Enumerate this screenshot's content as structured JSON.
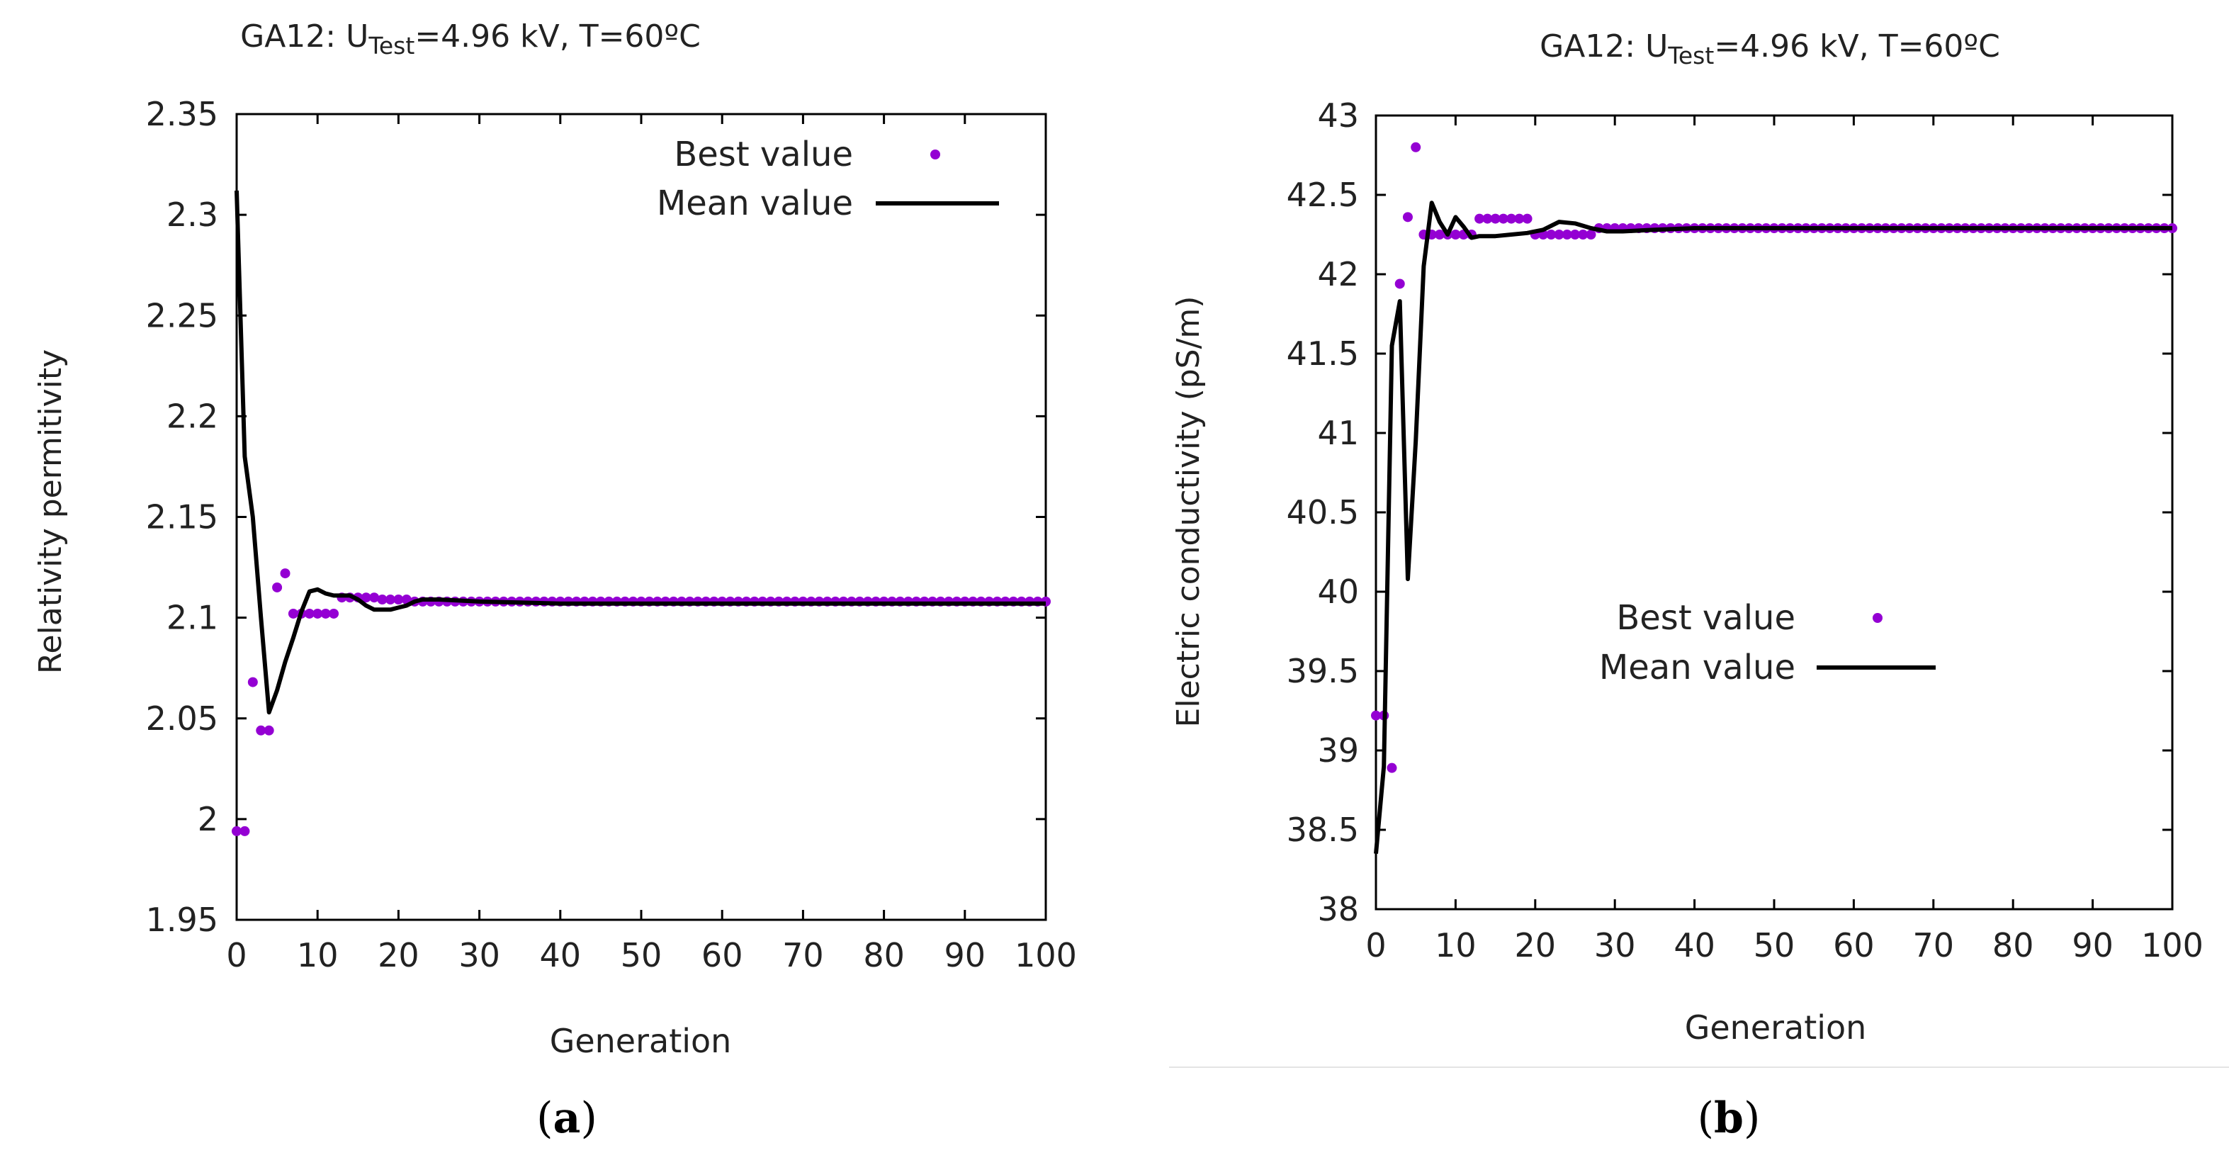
{
  "chart_data": [
    {
      "type": "scatter",
      "panel_label": "a",
      "title": {
        "prefix": "GA12: U",
        "subscript": "Test",
        "suffix": "=4.96 kV, T=60ºC"
      },
      "xlabel": "Generation",
      "ylabel": "Relativity permitivity",
      "xlim": [
        0,
        100
      ],
      "ylim": [
        1.95,
        2.35
      ],
      "xticks": [
        0,
        10,
        20,
        30,
        40,
        50,
        60,
        70,
        80,
        90,
        100
      ],
      "yticks": [
        1.95,
        2,
        2.05,
        2.1,
        2.15,
        2.2,
        2.25,
        2.3,
        2.35
      ],
      "ytick_labels": [
        "1.95",
        "2",
        "2.05",
        "2.1",
        "2.15",
        "2.2",
        "2.25",
        "2.3",
        "2.35"
      ],
      "grid": false,
      "legend_position": "top-right",
      "series": [
        {
          "name": "Best value",
          "style": "points",
          "color": "#9400d3",
          "x": [
            0,
            1,
            2,
            3,
            4,
            5,
            6,
            7,
            8,
            9,
            10,
            11,
            12,
            13,
            14,
            15,
            16,
            17,
            18,
            19,
            20,
            21,
            22,
            23,
            24,
            25,
            26,
            27,
            28,
            29,
            30,
            31,
            32,
            33,
            34,
            35,
            36,
            37,
            38,
            39,
            40,
            41,
            42,
            43,
            44,
            45,
            46,
            47,
            48,
            49,
            50,
            51,
            52,
            53,
            54,
            55,
            56,
            57,
            58,
            59,
            60,
            61,
            62,
            63,
            64,
            65,
            66,
            67,
            68,
            69,
            70,
            71,
            72,
            73,
            74,
            75,
            76,
            77,
            78,
            79,
            80,
            81,
            82,
            83,
            84,
            85,
            86,
            87,
            88,
            89,
            90,
            91,
            92,
            93,
            94,
            95,
            96,
            97,
            98,
            99,
            100
          ],
          "y": [
            1.994,
            1.994,
            2.068,
            2.044,
            2.044,
            2.115,
            2.122,
            2.102,
            2.102,
            2.102,
            2.102,
            2.102,
            2.102,
            2.11,
            2.11,
            2.11,
            2.11,
            2.11,
            2.109,
            2.109,
            2.109,
            2.109,
            2.108,
            2.108,
            2.108,
            2.108,
            2.108,
            2.108,
            2.108,
            2.108,
            2.108,
            2.108,
            2.108,
            2.108,
            2.108,
            2.108,
            2.108,
            2.108,
            2.108,
            2.108,
            2.108,
            2.108,
            2.108,
            2.108,
            2.108,
            2.108,
            2.108,
            2.108,
            2.108,
            2.108,
            2.108,
            2.108,
            2.108,
            2.108,
            2.108,
            2.108,
            2.108,
            2.108,
            2.108,
            2.108,
            2.108,
            2.108,
            2.108,
            2.108,
            2.108,
            2.108,
            2.108,
            2.108,
            2.108,
            2.108,
            2.108,
            2.108,
            2.108,
            2.108,
            2.108,
            2.108,
            2.108,
            2.108,
            2.108,
            2.108,
            2.108,
            2.108,
            2.108,
            2.108,
            2.108,
            2.108,
            2.108,
            2.108,
            2.108,
            2.108,
            2.108,
            2.108,
            2.108,
            2.108,
            2.108,
            2.108,
            2.108,
            2.108,
            2.108,
            2.108,
            2.108
          ]
        },
        {
          "name": "Mean value",
          "style": "line",
          "color": "#000000",
          "x": [
            0,
            1,
            2,
            3,
            4,
            5,
            6,
            7,
            8,
            9,
            10,
            11,
            12,
            13,
            14,
            15,
            16,
            17,
            18,
            19,
            20,
            21,
            22,
            23,
            24,
            25,
            30,
            40,
            50,
            60,
            70,
            80,
            90,
            100
          ],
          "y": [
            2.312,
            2.18,
            2.15,
            2.1,
            2.053,
            2.064,
            2.078,
            2.09,
            2.103,
            2.113,
            2.114,
            2.112,
            2.111,
            2.111,
            2.111,
            2.109,
            2.106,
            2.104,
            2.104,
            2.104,
            2.105,
            2.106,
            2.108,
            2.109,
            2.109,
            2.109,
            2.108,
            2.107,
            2.107,
            2.107,
            2.107,
            2.107,
            2.107,
            2.107
          ]
        }
      ]
    },
    {
      "type": "scatter",
      "panel_label": "b",
      "title": {
        "prefix": "GA12: U",
        "subscript": "Test",
        "suffix": "=4.96 kV, T=60ºC"
      },
      "xlabel": "Generation",
      "ylabel": "Electric conductivity (pS/m)",
      "xlim": [
        0,
        100
      ],
      "ylim": [
        38,
        43
      ],
      "xticks": [
        0,
        10,
        20,
        30,
        40,
        50,
        60,
        70,
        80,
        90,
        100
      ],
      "yticks": [
        38,
        38.5,
        39,
        39.5,
        40,
        40.5,
        41,
        41.5,
        42,
        42.5,
        43
      ],
      "ytick_labels": [
        "38",
        "38.5",
        "39",
        "39.5",
        "40",
        "40.5",
        "41",
        "41.5",
        "42",
        "42.5",
        "43"
      ],
      "grid": false,
      "legend_position": "center",
      "series": [
        {
          "name": "Best value",
          "style": "points",
          "color": "#9400d3",
          "x": [
            0,
            1,
            2,
            3,
            4,
            5,
            6,
            7,
            8,
            9,
            10,
            11,
            12,
            13,
            14,
            15,
            16,
            17,
            18,
            19,
            20,
            21,
            22,
            23,
            24,
            25,
            26,
            27,
            28,
            29,
            30,
            31,
            32,
            33,
            34,
            35,
            36,
            37,
            38,
            39,
            40,
            41,
            42,
            43,
            44,
            45,
            46,
            47,
            48,
            49,
            50,
            51,
            52,
            53,
            54,
            55,
            56,
            57,
            58,
            59,
            60,
            61,
            62,
            63,
            64,
            65,
            66,
            67,
            68,
            69,
            70,
            71,
            72,
            73,
            74,
            75,
            76,
            77,
            78,
            79,
            80,
            81,
            82,
            83,
            84,
            85,
            86,
            87,
            88,
            89,
            90,
            91,
            92,
            93,
            94,
            95,
            96,
            97,
            98,
            99,
            100
          ],
          "y": [
            39.22,
            39.22,
            38.89,
            41.94,
            42.36,
            42.8,
            42.25,
            42.25,
            42.25,
            42.25,
            42.25,
            42.25,
            42.25,
            42.35,
            42.35,
            42.35,
            42.35,
            42.35,
            42.35,
            42.35,
            42.25,
            42.25,
            42.25,
            42.25,
            42.25,
            42.25,
            42.25,
            42.25,
            42.29,
            42.29,
            42.29,
            42.29,
            42.29,
            42.29,
            42.29,
            42.29,
            42.29,
            42.29,
            42.29,
            42.29,
            42.29,
            42.29,
            42.29,
            42.29,
            42.29,
            42.29,
            42.29,
            42.29,
            42.29,
            42.29,
            42.29,
            42.29,
            42.29,
            42.29,
            42.29,
            42.29,
            42.29,
            42.29,
            42.29,
            42.29,
            42.29,
            42.29,
            42.29,
            42.29,
            42.29,
            42.29,
            42.29,
            42.29,
            42.29,
            42.29,
            42.29,
            42.29,
            42.29,
            42.29,
            42.29,
            42.29,
            42.29,
            42.29,
            42.29,
            42.29,
            42.29,
            42.29,
            42.29,
            42.29,
            42.29,
            42.29,
            42.29,
            42.29,
            42.29,
            42.29,
            42.29,
            42.29,
            42.29,
            42.29,
            42.29,
            42.29,
            42.29,
            42.29,
            42.29,
            42.29,
            42.29
          ]
        },
        {
          "name": "Mean value",
          "style": "line",
          "color": "#000000",
          "x": [
            0,
            1,
            2,
            3,
            4,
            5,
            6,
            7,
            8,
            9,
            10,
            11,
            12,
            13,
            15,
            17,
            19,
            21,
            23,
            25,
            27,
            29,
            31,
            35,
            40,
            50,
            60,
            70,
            80,
            90,
            100
          ],
          "y": [
            38.35,
            38.9,
            41.55,
            41.83,
            40.08,
            40.95,
            42.05,
            42.45,
            42.33,
            42.25,
            42.36,
            42.3,
            42.23,
            42.24,
            42.24,
            42.25,
            42.26,
            42.28,
            42.33,
            42.32,
            42.29,
            42.27,
            42.27,
            42.28,
            42.29,
            42.29,
            42.29,
            42.29,
            42.29,
            42.29,
            42.29
          ]
        }
      ]
    }
  ]
}
